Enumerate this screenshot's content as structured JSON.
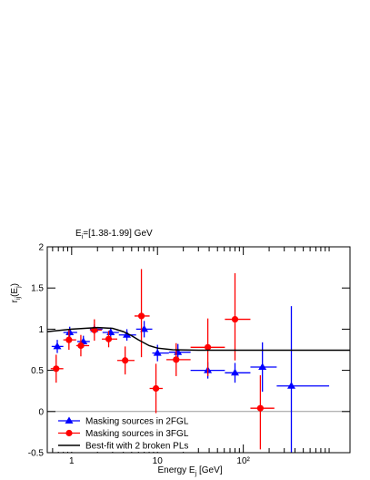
{
  "chart_data": {
    "type": "scatter",
    "title": [
      {
        "text": "E"
      },
      {
        "text": "i",
        "sub": true
      },
      {
        "text": "=[1.38-1.99] GeV"
      }
    ],
    "xlabel": [
      {
        "text": "Energy E"
      },
      {
        "text": "j",
        "sub": true
      },
      {
        "text": " [GeV]"
      }
    ],
    "ylabel": [
      {
        "text": "r"
      },
      {
        "text": "ij",
        "sub": true
      },
      {
        "text": "(E"
      },
      {
        "text": "j",
        "sub": true
      },
      {
        "text": ")"
      }
    ],
    "xscale": "log",
    "xlim": [
      0.52,
      1750
    ],
    "ylim": [
      -0.5,
      2
    ],
    "xticks": [
      1,
      10,
      {
        "value": 100,
        "label": "10²"
      }
    ],
    "xminorticks": [
      0.6,
      0.7,
      0.8,
      0.9,
      2,
      3,
      4,
      5,
      6,
      7,
      8,
      9,
      20,
      30,
      40,
      50,
      60,
      70,
      80,
      90,
      200,
      300,
      400,
      500,
      600,
      700,
      800,
      900,
      1000
    ],
    "yticks": [
      -0.5,
      0,
      0.5,
      1,
      1.5,
      2
    ],
    "zero_line": true,
    "legend": "lower left",
    "series": [
      {
        "name": "Masking sources in 2FGL",
        "color": "#0000ff",
        "marker": "triangle",
        "x": [
          0.68,
          0.95,
          1.37,
          1.84,
          2.85,
          4.4,
          7.0,
          10,
          17.3,
          38.6,
          80,
          167,
          363
        ],
        "values": [
          0.79,
          0.96,
          0.85,
          1.0,
          0.96,
          0.93,
          1.0,
          0.71,
          0.72,
          0.5,
          0.47,
          0.54,
          0.31
        ],
        "x_low": [
          0.585,
          0.8,
          1.16,
          1.63,
          2.29,
          3.55,
          5.64,
          8.7,
          13.6,
          24.3,
          61,
          121,
          245
        ],
        "x_high": [
          0.8,
          1.16,
          1.63,
          2.29,
          3.55,
          5.64,
          8.7,
          13.6,
          24.3,
          61,
          121,
          245,
          1000
        ],
        "yerr_low": [
          0.08,
          0.07,
          0.07,
          0.06,
          0.06,
          0.07,
          0.1,
          0.1,
          0.1,
          0.1,
          0.12,
          0.3,
          0.81
        ],
        "yerr_high": [
          0.08,
          0.07,
          0.07,
          0.06,
          0.06,
          0.07,
          0.1,
          0.1,
          0.1,
          0.1,
          0.12,
          0.3,
          0.97
        ]
      },
      {
        "name": "Masking sources in 3FGL",
        "color": "#ff0000",
        "marker": "circle",
        "x": [
          0.66,
          0.93,
          1.28,
          1.84,
          2.7,
          4.2,
          6.5,
          9.6,
          16.5,
          38.6,
          80,
          158
        ],
        "values": [
          0.52,
          0.87,
          0.8,
          0.99,
          0.88,
          0.62,
          1.16,
          0.28,
          0.63,
          0.78,
          1.12,
          0.04
        ],
        "x_low": [
          0.57,
          0.8,
          1.13,
          1.63,
          2.25,
          3.4,
          5.4,
          8.1,
          12.7,
          24.3,
          61,
          121
        ],
        "x_high": [
          0.8,
          1.13,
          1.6,
          2.25,
          3.4,
          5.4,
          8.1,
          11.5,
          24.3,
          61,
          121,
          230
        ],
        "yerr_low": [
          0.17,
          0.12,
          0.13,
          0.13,
          0.1,
          0.17,
          0.5,
          0.3,
          0.2,
          0.35,
          0.5,
          0.5
        ],
        "yerr_high": [
          0.17,
          0.12,
          0.13,
          0.13,
          0.1,
          0.17,
          0.57,
          0.3,
          0.2,
          0.35,
          0.56,
          0.4
        ]
      },
      {
        "name": "Best-fit with 2 broken PLs",
        "color": "#000000",
        "type": "line",
        "x": [
          0.52,
          1,
          2,
          3,
          4,
          5,
          6,
          8,
          10,
          15,
          30,
          1750
        ],
        "values": [
          0.97,
          1.0,
          1.02,
          1.01,
          0.97,
          0.92,
          0.87,
          0.8,
          0.77,
          0.75,
          0.745,
          0.745
        ]
      }
    ]
  }
}
